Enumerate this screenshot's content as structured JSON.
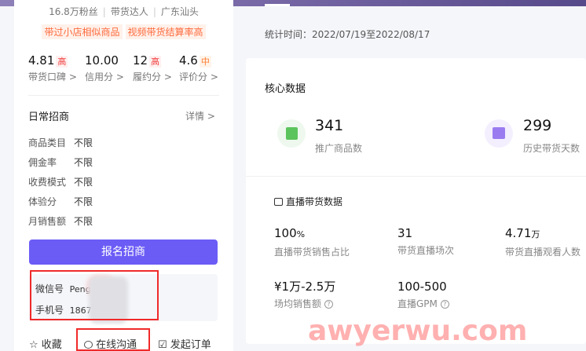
{
  "profile": {
    "fans": "16.8万粉丝",
    "role": "带货达人",
    "location": "广东汕头",
    "tags": [
      "带过小店相似商品",
      "视频带货结算率高"
    ]
  },
  "scores": [
    {
      "value": "4.81",
      "level": "高",
      "label": "带货口碑 >"
    },
    {
      "value": "10.00",
      "level": "",
      "label": "信用分 >"
    },
    {
      "value": "12",
      "level": "高",
      "label": "履约分 >"
    },
    {
      "value": "4.6",
      "level": "中",
      "label": "评价分 >"
    }
  ],
  "recruit": {
    "title": "日常招商",
    "detail": "详情 >",
    "rows": [
      {
        "k": "商品类目",
        "v": "不限"
      },
      {
        "k": "佣金率",
        "v": "不限"
      },
      {
        "k": "收费模式",
        "v": "不限"
      },
      {
        "k": "体验分",
        "v": "不限"
      },
      {
        "k": "月销售额",
        "v": "不限"
      }
    ],
    "button": "报名招商"
  },
  "contact": {
    "wechat_label": "微信号",
    "wechat_value": "Peng",
    "phone_label": "手机号",
    "phone_value": "1867"
  },
  "actions": {
    "favorite": "收藏",
    "chat": "在线沟通",
    "order": "发起订单"
  },
  "stat_period": "统计时间：2022/07/19至2022/08/17",
  "core": {
    "title": "核心数据",
    "items": [
      {
        "value": "341",
        "label": "推广商品数"
      },
      {
        "value": "299",
        "label": "历史带货天数"
      }
    ]
  },
  "live": {
    "title": "直播带货数据",
    "metrics": [
      {
        "value": "100",
        "unit": "%",
        "label": "直播带货销售占比"
      },
      {
        "value": "31",
        "unit": "",
        "label": "带货直播场次"
      },
      {
        "value": "4.71",
        "unit": "万",
        "label": "带货直播观看人数"
      },
      {
        "value": "¥1万-2.5万",
        "unit": "",
        "label": "场均销售额"
      },
      {
        "value": "100-500",
        "unit": "",
        "label": "直播GPM"
      }
    ]
  },
  "watermark": "awyerwu.com",
  "colors": {
    "primary": "#6b5cf6",
    "high": "#f03a3a",
    "mid": "#ff7a2e",
    "tag": "#ff6a3d"
  }
}
